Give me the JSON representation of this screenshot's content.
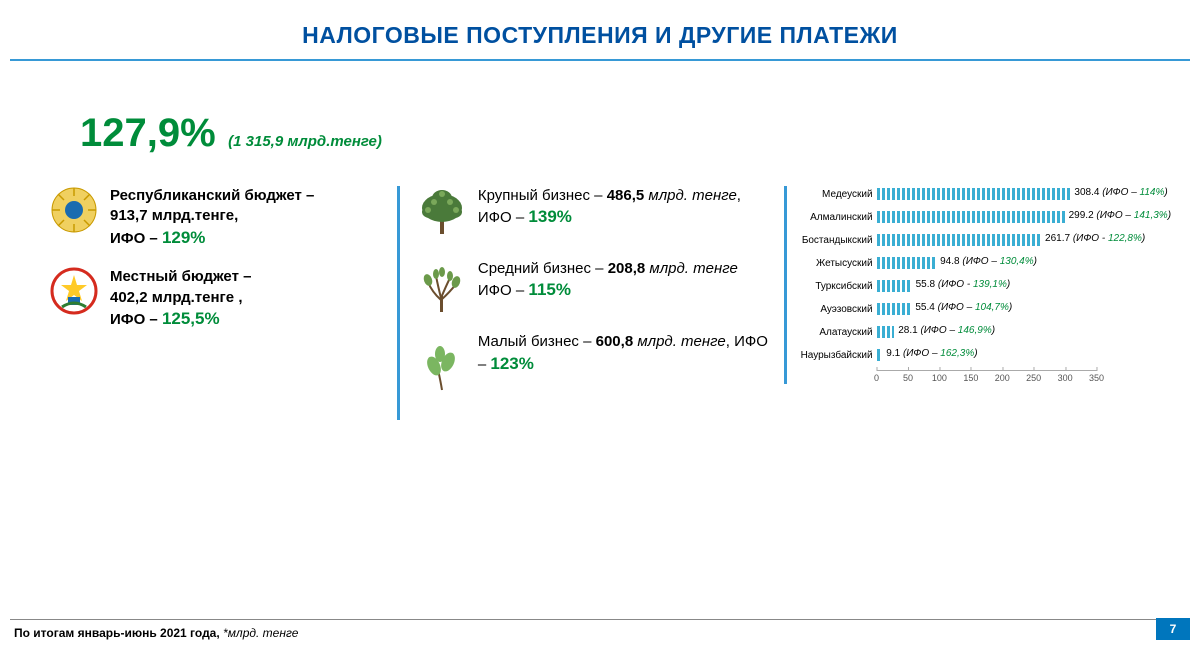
{
  "title": "НАЛОГОВЫЕ ПОСТУПЛЕНИЯ И ДРУГИЕ ПЛАТЕЖИ",
  "colors": {
    "title": "#0050a0",
    "divider": "#3799d6",
    "accent_green": "#008c3a",
    "bar_fill": "#3aaed3",
    "page_badge_bg": "#0076bd",
    "page_badge_fg": "#ffffff"
  },
  "headline": {
    "percent": "127,9%",
    "subtitle": "(1 315,9 млрд.тенге)"
  },
  "budgets": [
    {
      "icon": "emblem-national",
      "icon_colors": {
        "bg": "#f0d060",
        "accent": "#1a6bb0"
      },
      "line1": "Республиканский бюджет –",
      "line2_value": "913,7 млрд.тенге,",
      "ifo_label": "ИФО –",
      "ifo_value": "129%"
    },
    {
      "icon": "emblem-city",
      "icon_colors": {
        "bg": "#ffffff",
        "ring": "#d52b1e",
        "accent": "#1a6bb0",
        "green": "#2e7d32"
      },
      "line1": "Местный бюджет –",
      "line2_value": "402,2 млрд.тенге ,",
      "ifo_label": "ИФО –",
      "ifo_value": "125,5%"
    }
  ],
  "business": [
    {
      "icon": "tree-large",
      "name": "Крупный бизнес",
      "value": "486,5",
      "unit": "млрд. тенге",
      "ifo_label": "ИФО –",
      "ifo_value": "139%"
    },
    {
      "icon": "tree-medium",
      "name": "Средний бизнес",
      "value": "208,8",
      "unit": "млрд. тенге",
      "ifo_label": "ИФО –",
      "ifo_value": "115%"
    },
    {
      "icon": "tree-small",
      "name": "Малый бизнес",
      "value": "600,8",
      "unit": "млрд. тенге",
      "ifo_label": "ИФО –",
      "ifo_value": "123%"
    }
  ],
  "chart": {
    "type": "bar-horizontal",
    "categories": [
      "Медеуский",
      "Алмалинский",
      "Бостандыкский",
      "Жетысуский",
      "Турксибский",
      "Ауэзовский",
      "Алатауский",
      "Наурызбайский"
    ],
    "values": [
      308.4,
      299.2,
      261.7,
      94.8,
      55.8,
      55.4,
      28.1,
      9.1
    ],
    "ifo": [
      "114%",
      "141,3%",
      "122,8%",
      "130,4%",
      "139,1%",
      "104,7%",
      "146,9%",
      "162,3%"
    ],
    "ifo_prefix": "(ИФО – ",
    "ifo_prefix_alt": "(ИФО - ",
    "ifo_suffix": ")",
    "xlim": [
      0,
      350
    ],
    "xticks": [
      0,
      50,
      100,
      150,
      200,
      250,
      300,
      350
    ],
    "bar_color": "#3aaed3",
    "bar_pattern": "hatched-vertical",
    "label_fontsize": 10,
    "axis_fontsize": 9,
    "background_color": "#ffffff"
  },
  "footer": {
    "text": "По итогам январь-июнь 2021 года, ",
    "italic": "*млрд. тенге"
  },
  "page_number": "7"
}
